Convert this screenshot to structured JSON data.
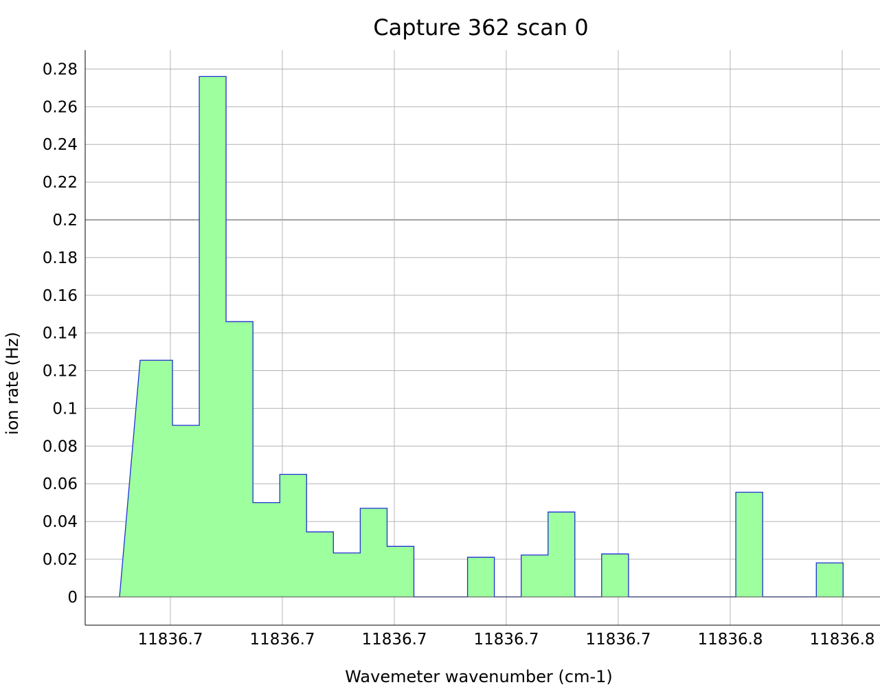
{
  "chart_data": {
    "type": "area",
    "title": "Capture 362 scan 0",
    "xlabel": "Wavemeter wavenumber (cm-1)",
    "ylabel": "ion rate (Hz)",
    "x_tick_labels": [
      "11836.7",
      "11836.7",
      "11836.7",
      "11836.7",
      "11836.7",
      "11836.8",
      "11836.8"
    ],
    "y_ticks": [
      0,
      0.02,
      0.04,
      0.06,
      0.08,
      0.1,
      0.12,
      0.14,
      0.16,
      0.18,
      0.2,
      0.22,
      0.24,
      0.26,
      0.28
    ],
    "y_tick_labels": [
      "0",
      "0.02",
      "0.04",
      "0.06",
      "0.08",
      "0.1",
      "0.12",
      "0.14",
      "0.16",
      "0.18",
      "0.2",
      "0.22",
      "0.24",
      "0.26",
      "0.28"
    ],
    "ylim": [
      -0.015,
      0.29
    ],
    "grid": true,
    "step_values": [
      0.1255,
      0.091,
      0.276,
      0.146,
      0.05,
      0.065,
      0.0345,
      0.0233,
      0.047,
      0.0268,
      0,
      0,
      0.021,
      0,
      0.0222,
      0.045,
      0,
      0.0228,
      0,
      0,
      0,
      0,
      0.0555,
      0,
      0,
      0.018
    ],
    "colors": {
      "fill": "#9dff9d",
      "line": "#1f2fd6",
      "grid": "#b4b4b4",
      "zero_line": "#555555"
    }
  }
}
